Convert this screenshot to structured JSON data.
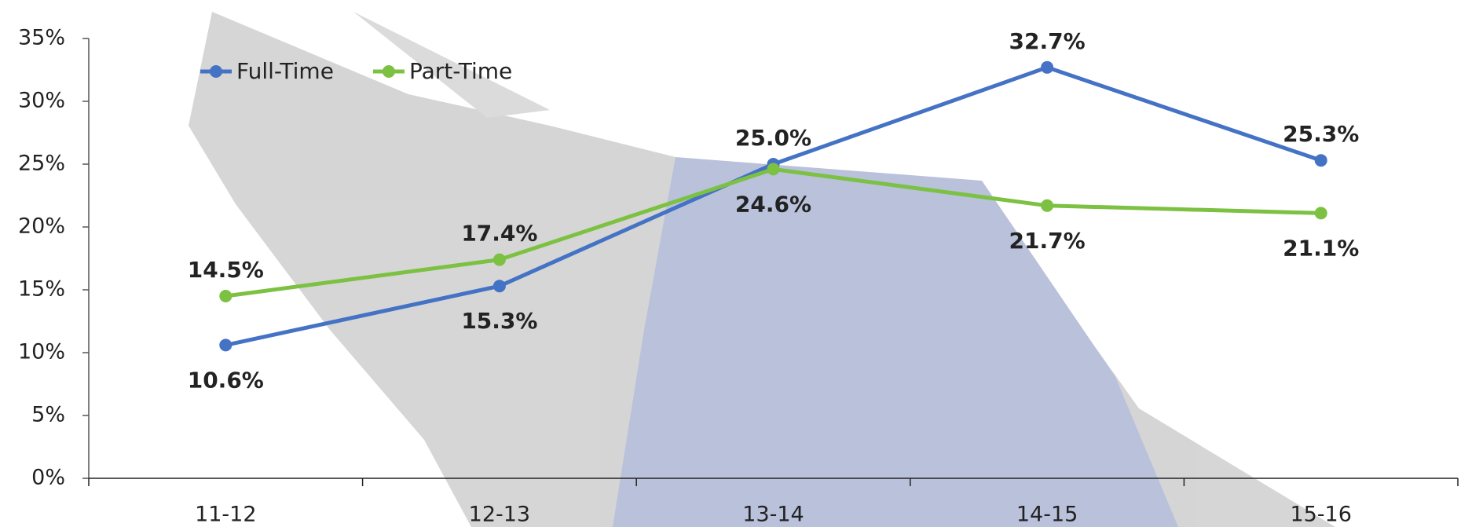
{
  "chart_data": {
    "type": "line",
    "categories": [
      "11-12",
      "12-13",
      "13-14",
      "14-15",
      "15-16"
    ],
    "series": [
      {
        "name": "Full-Time",
        "color": "#4472c4",
        "values": [
          10.6,
          15.3,
          25.0,
          32.7,
          25.3
        ],
        "value_labels": [
          "10.6%",
          "15.3%",
          "25.0%",
          "32.7%",
          "25.3%"
        ]
      },
      {
        "name": "Part-Time",
        "color": "#7cc142",
        "values": [
          14.5,
          17.4,
          24.6,
          21.7,
          21.1
        ],
        "value_labels": [
          "14.5%",
          "17.4%",
          "24.6%",
          "21.7%",
          "21.1%"
        ]
      }
    ],
    "ylim": [
      0,
      35
    ],
    "yticks": [
      {
        "value": 0,
        "label": "0%"
      },
      {
        "value": 5,
        "label": "5%"
      },
      {
        "value": 10,
        "label": "10%"
      },
      {
        "value": 15,
        "label": "15%"
      },
      {
        "value": 20,
        "label": "20%"
      },
      {
        "value": 25,
        "label": "25%"
      },
      {
        "value": 30,
        "label": "30%"
      },
      {
        "value": 35,
        "label": "35%"
      }
    ],
    "grid": false,
    "legend": "top-left"
  }
}
